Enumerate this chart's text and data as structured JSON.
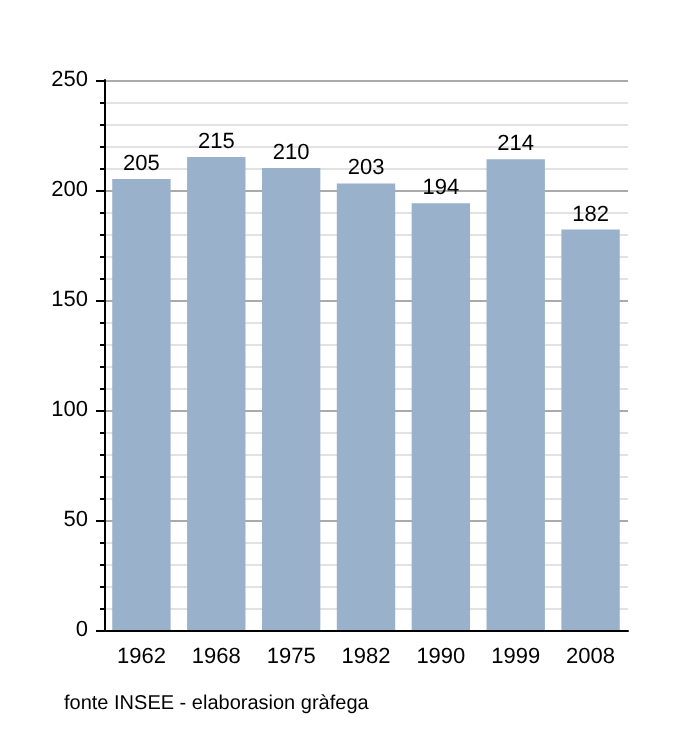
{
  "chart_data": {
    "type": "bar",
    "categories": [
      "1962",
      "1968",
      "1975",
      "1982",
      "1990",
      "1999",
      "2008"
    ],
    "values": [
      205,
      215,
      210,
      203,
      194,
      214,
      182
    ],
    "color": "#99b1cb",
    "ylim": [
      0,
      250
    ],
    "yticks": [
      0,
      50,
      100,
      150,
      200,
      250
    ],
    "grid": "y",
    "data_labels": true,
    "annotations": [
      "fonte INSEE - elaborasion gràfega"
    ]
  }
}
